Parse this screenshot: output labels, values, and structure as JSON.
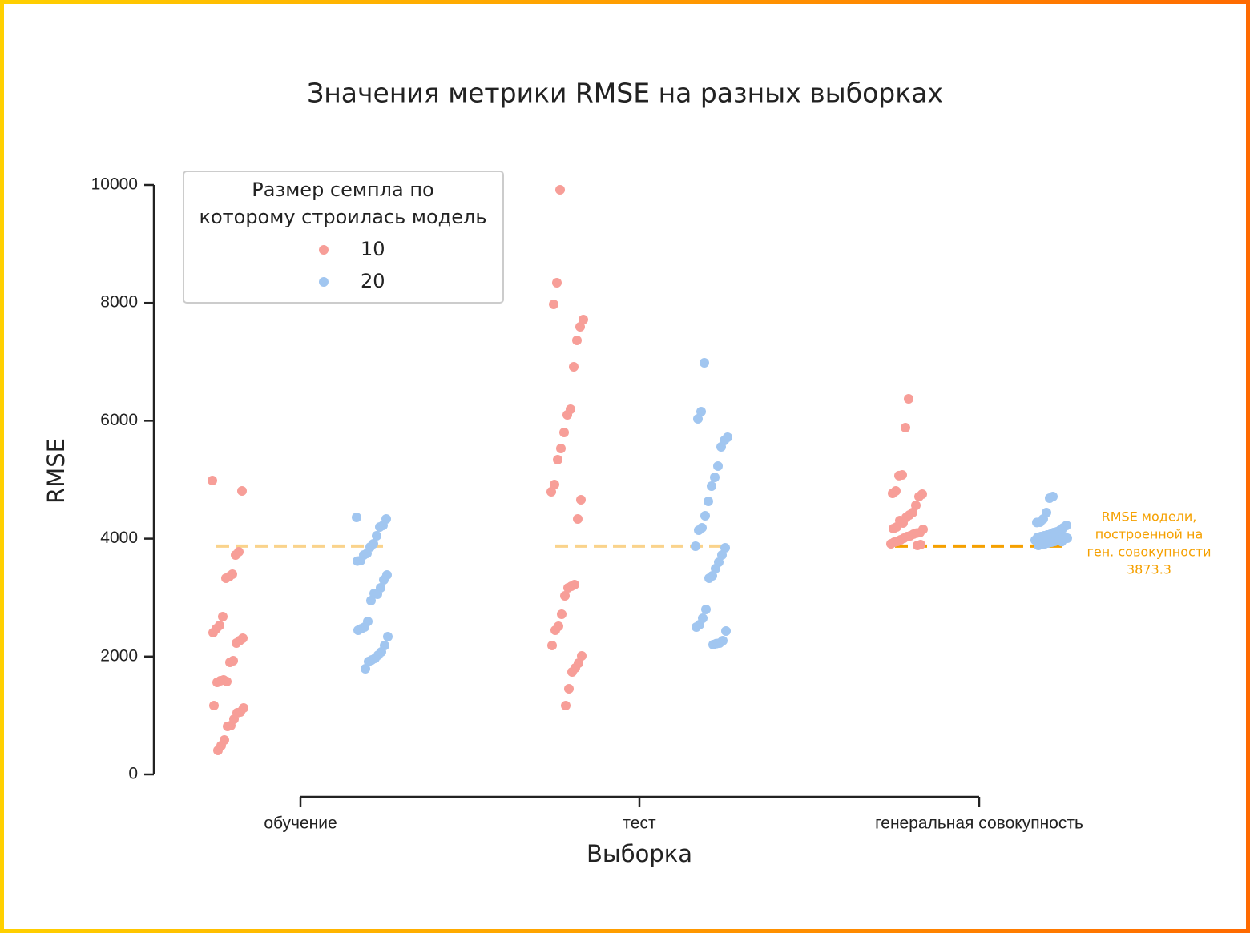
{
  "chart_data": {
    "type": "strip",
    "title": "Значения метрики RMSE на разных выборках",
    "x_label": "Выборка",
    "y_label": "RMSE",
    "categories": [
      "обучение",
      "тест",
      "генеральная совокупность"
    ],
    "ylim": [
      0,
      10000
    ],
    "yticks": [
      0,
      2000,
      4000,
      6000,
      8000,
      10000
    ],
    "legend_title": [
      "Размер семпла по",
      "которому строилась модель"
    ],
    "legend_position": "upper left",
    "series": [
      {
        "name": "10",
        "color": "#f79e98",
        "values": [
          [
            4986,
            4810,
            3777,
            3723,
            3397,
            3356,
            3329,
            2677,
            2527,
            2473,
            2405,
            2310,
            2269,
            2228,
            1929,
            1902,
            1576,
            1603,
            1590,
            1562,
            1168,
            1128,
            1060,
            1046,
            938,
            829,
            815,
            584,
            489,
            408
          ],
          [
            9918,
            8342,
            7976,
            7717,
            7595,
            7364,
            6916,
            6196,
            6101,
            5802,
            5530,
            5340,
            4918,
            4796,
            4660,
            4334,
            3220,
            3193,
            3166,
            3030,
            2717,
            2514,
            2446,
            2188,
            2011,
            1889,
            1807,
            1739,
            1454,
            1168
          ],
          [
            6372,
            5883,
            5082,
            5070,
            4810,
            4769,
            4755,
            4715,
            4565,
            4443,
            4402,
            4361,
            4266,
            4307,
            4198,
            4171,
            4158,
            4103,
            4095,
            4076,
            4049,
            4035,
            4008,
            3981,
            3954,
            3940,
            3913,
            3899,
            3886
          ]
        ]
      },
      {
        "name": "20",
        "color": "#a1c6f0",
        "values": [
          [
            4361,
            4334,
            4226,
            4198,
            4049,
            3913,
            3859,
            3750,
            3723,
            3628,
            3620,
            3383,
            3302,
            3166,
            3057,
            3071,
            2948,
            2595,
            2500,
            2473,
            2446,
            2337,
            2188,
            2079,
            2024,
            1970,
            1943,
            1916,
            1793
          ],
          [
            6984,
            6155,
            6033,
            5720,
            5666,
            5557,
            5231,
            5041,
            4891,
            4633,
            4389,
            4185,
            4144,
            3872,
            3845,
            3723,
            3601,
            3492,
            3370,
            3329,
            2799,
            2649,
            2541,
            2500,
            2432,
            2269,
            2228,
            2220,
            2201
          ],
          [
            4715,
            4688,
            4443,
            4334,
            4280,
            4275,
            4226,
            4185,
            4144,
            4117,
            4103,
            4076,
            4062,
            4049,
            4035,
            4022,
            4008,
            3995,
            3981,
            3967,
            3954,
            3940,
            3927,
            3913,
            3899,
            3886,
            3975,
            4030,
            3950
          ]
        ]
      }
    ],
    "reference_line": {
      "value": 3873.3,
      "color": "#f5a000",
      "annotation": [
        "RMSE модели,",
        "построенной на",
        "ген. совокупности"
      ]
    }
  }
}
